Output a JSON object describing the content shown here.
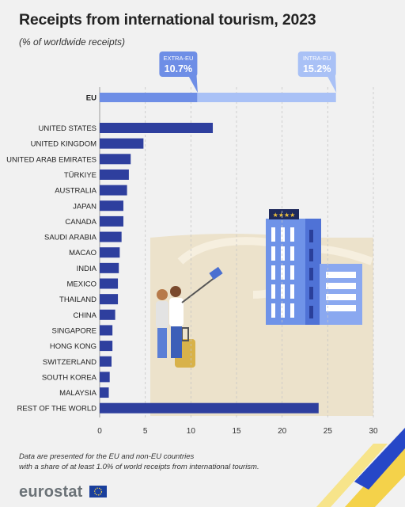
{
  "title": "Receipts from international tourism, 2023",
  "subtitle": "(% of worldwide receipts)",
  "footnote_line1": "Data are presented for the EU and non-EU countries",
  "footnote_line2": "with a share of at least 1.0% of world receipts from international tourism.",
  "brand": "eurostat",
  "colors": {
    "bar": "#2e3f9e",
    "extra_eu": "#6e8ee6",
    "intra_eu": "#a9c1f6",
    "background": "#f1f1f1"
  },
  "chart_data": {
    "type": "bar",
    "orientation": "horizontal",
    "xlim": [
      0,
      30
    ],
    "xticks": [
      "0",
      "5",
      "10",
      "15",
      "20",
      "25",
      "30"
    ],
    "grid": "vertical dashed",
    "eu": {
      "label": "EU",
      "extra_eu": {
        "name": "EXTRA-EU",
        "value": 10.7,
        "value_label": "10.7%"
      },
      "intra_eu": {
        "name": "INTRA-EU",
        "value": 15.2,
        "value_label": "15.2%"
      }
    },
    "categories": [
      "UNITED STATES",
      "UNITED KINGDOM",
      "UNITED ARAB EMIRATES",
      "TÜRKIYE",
      "AUSTRALIA",
      "JAPAN",
      "CANADA",
      "SAUDI ARABIA",
      "MACAO",
      "INDIA",
      "MEXICO",
      "THAILAND",
      "CHINA",
      "SINGAPORE",
      "HONG KONG",
      "SWITZERLAND",
      "SOUTH KOREA",
      "MALAYSIA",
      "REST OF THE WORLD"
    ],
    "values": [
      12.4,
      4.8,
      3.4,
      3.2,
      3.0,
      2.6,
      2.6,
      2.4,
      2.2,
      2.1,
      2.0,
      2.0,
      1.7,
      1.4,
      1.4,
      1.3,
      1.1,
      1.0,
      24.0
    ]
  }
}
